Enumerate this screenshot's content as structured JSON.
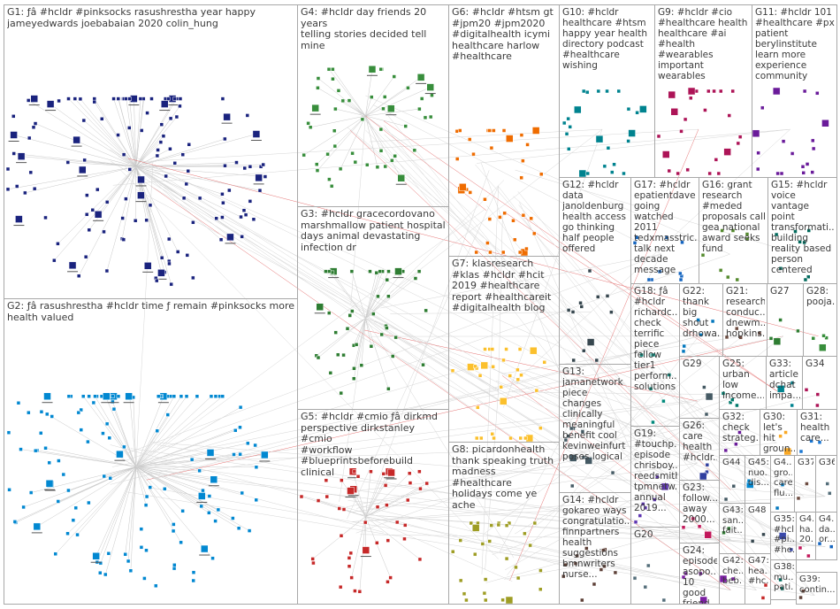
{
  "graph": {
    "groups": [
      {
        "id": "G1",
        "label": "G1: ƒâ #hcldr #pinksocks rasushrestha year happy\njameyedwards joebabaian 2020 colin_hung",
        "color": "#1a237e",
        "nodes": 140
      },
      {
        "id": "G2",
        "label": "G2: ƒâ rasushrestha #hcldr time ƒ remain #pinksocks more\nhealth valued",
        "color": "#0288d1",
        "nodes": 130
      },
      {
        "id": "G3",
        "label": "G3: #hcldr gracecordovano\nmarshmallow patient hospital\ndays animal devastating\ninfection dr",
        "color": "#2e7d32",
        "nodes": 45
      },
      {
        "id": "G4",
        "label": "G4: #hcldr day friends 20 years\ntelling stories decided tell mine",
        "color": "#388e3c",
        "nodes": 50
      },
      {
        "id": "G5",
        "label": "G5: #hcldr #cmio ƒâ dirkmd\nperspective dirkstanley #cmio\n#workflow\n#blueprintsbeforebuild clinical",
        "color": "#c62828",
        "nodes": 45
      },
      {
        "id": "G6",
        "label": "G6: #hcldr #htsm gt\n#jpm20 #jpm2020\n#digitalhealth icymi\nhealthcare harlow\n#healthcare",
        "color": "#ef6c00",
        "nodes": 40
      },
      {
        "id": "G7",
        "label": "G7: klasresearch\n#klas #hcldr #hcit\n2019 #healthcare\nreport #healthcareit\n#digitalhealth blog",
        "color": "#fbc02d",
        "nodes": 35
      },
      {
        "id": "G8",
        "label": "G8: picardonhealth\nthank speaking truth\nmadness #healthcare\nholidays come ye\nache",
        "color": "#9e9d24",
        "nodes": 30
      },
      {
        "id": "G9",
        "label": "G9: #hcldr #cio\n#healthcare health\nhealthcare #ai\n#health #wearables\nimportant\nwearables",
        "color": "#ad1457",
        "nodes": 25
      },
      {
        "id": "G10",
        "label": "G10: #hcldr\nhealthcare #htsm\nhappy year health\ndirectory podcast\n#healthcare\nwishing",
        "color": "#00838f",
        "nodes": 24
      },
      {
        "id": "G11",
        "label": "G11: #hcldr 101\n#healthcare #px\npatient\nberylinstitute\nlearn more\nexperience\ncommunity",
        "color": "#6a1b9a",
        "nodes": 20
      },
      {
        "id": "G12",
        "label": "G12: #hcldr\ndata\njanoldenburg\nhealth access\ngo thinking\nhalf people\noffered",
        "color": "#37474f",
        "nodes": 12
      },
      {
        "id": "G13",
        "label": "G13:\njamanetwork\npiece changes\nclinically\nmeaningful\nbenefit cool\nkevinweinfurt\nposes logical",
        "color": "#455a64",
        "nodes": 10
      },
      {
        "id": "G14",
        "label": "G14: #hcldr\ngokareo ways\ncongratulatio...\nfinnpartners\nhealth\nsuggestions\nbmnwriters\nnurse...",
        "color": "#5d4037",
        "nodes": 12
      },
      {
        "id": "G15",
        "label": "G15: #hcldr\nvoice vantage\npoint\ntransformati...\nbuilding\nreality based\nperson\ncentered",
        "color": "#00695c",
        "nodes": 8
      },
      {
        "id": "G16",
        "label": "G16: grant\nresearch\n#meded\nproposals call\ngea national\naward seeks\nfund",
        "color": "#558b2f",
        "nodes": 8
      },
      {
        "id": "G17",
        "label": "G17: #hcldr\nepatientdave\ngoing\nwatched 2011\ntedxmasstric...\ntalk next\ndecade\nmessage",
        "color": "#1565c0",
        "nodes": 10
      },
      {
        "id": "G18",
        "label": "G18: ƒâ\n#hcldr\nrichardc...\ncheck\nterrific\npiece\nfellow\ntier1\nperform...\nsolutions",
        "color": "#00897b",
        "nodes": 7
      },
      {
        "id": "G19",
        "label": "G19:\n#touchp...\nepisode\nchrisboy...\nreedsmith\ntpmnetw...\nannual\n2019...",
        "color": "#5e35b1",
        "nodes": 7
      },
      {
        "id": "G20",
        "label": "G20",
        "color": "#546e7a",
        "nodes": 5
      },
      {
        "id": "G21",
        "label": "G21:\nresearch\nconduc...\ndnewm...\nhopkins...",
        "color": "#6d4c41",
        "nodes": 4
      },
      {
        "id": "G22",
        "label": "G22:\nthank\nbig\nshout\ndrhowa...",
        "color": "#0277bd",
        "nodes": 5
      },
      {
        "id": "G23",
        "label": "G23:\nfollow...\naway\n2000...",
        "color": "#c2185b",
        "nodes": 4
      },
      {
        "id": "G24",
        "label": "G24:\nepisode\nasopo...\n10 good\nfriend...",
        "color": "#7b1fa2",
        "nodes": 4
      },
      {
        "id": "G25",
        "label": "G25:\nurban\nlow\nincome...",
        "color": "#00796b",
        "nodes": 4
      },
      {
        "id": "G26",
        "label": "G26:\ncare\nhealth\n#hcldr...",
        "color": "#303f9f",
        "nodes": 4
      },
      {
        "id": "G27",
        "label": "G27",
        "color": "#2e7d32",
        "nodes": 4
      },
      {
        "id": "G28",
        "label": "G28:\npooja...",
        "color": "#388e3c",
        "nodes": 4
      },
      {
        "id": "G29",
        "label": "G29",
        "color": "#455a64",
        "nodes": 3
      },
      {
        "id": "G30",
        "label": "G30:\nlet's hit\ngroun...",
        "color": "#f9a825",
        "nodes": 3
      },
      {
        "id": "G31",
        "label": "G31:\nhealth\ncare...",
        "color": "#1976d2",
        "nodes": 3
      },
      {
        "id": "G32",
        "label": "G32:\ncheck\nstrateg...",
        "color": "#6a1b9a",
        "nodes": 3
      },
      {
        "id": "G33",
        "label": "G33:\narticle\ndchat\nimpa...",
        "color": "#00838f",
        "nodes": 3
      },
      {
        "id": "G34",
        "label": "G34",
        "color": "#ad1457",
        "nodes": 3
      },
      {
        "id": "G35",
        "label": "G35:\n#hcl...\n#pi...\n#he...",
        "color": "#3949ab",
        "nodes": 3
      },
      {
        "id": "G36",
        "label": "G36",
        "color": "#546e7a",
        "nodes": 2
      },
      {
        "id": "G37",
        "label": "G37",
        "color": "#6d4c41",
        "nodes": 2
      },
      {
        "id": "G38",
        "label": "G38:\nmu...\npati...",
        "color": "#00695c",
        "nodes": 2
      },
      {
        "id": "G39",
        "label": "G39:\ncontin...",
        "color": "#5d4037",
        "nodes": 2
      },
      {
        "id": "G40",
        "label": "G4...\ngro...\ncare\nflu...",
        "color": "#0277bd",
        "nodes": 2
      },
      {
        "id": "G41",
        "label": "G4...\nha...\n20...",
        "color": "#c2185b",
        "nodes": 2
      },
      {
        "id": "G42",
        "label": "G42:\nche...\nbeb...",
        "color": "#7b1fa2",
        "nodes": 2
      },
      {
        "id": "G43",
        "label": "G43:\nsan...\nfait...",
        "color": "#2e7d32",
        "nodes": 2
      },
      {
        "id": "G44",
        "label": "G44",
        "color": "#455a64",
        "nodes": 2
      },
      {
        "id": "G45",
        "label": "G45:\nnuo...\ndis...",
        "color": "#0288d1",
        "nodes": 2
      },
      {
        "id": "G46",
        "label": "G4...\nda...\nor...",
        "color": "#1565c0",
        "nodes": 2
      },
      {
        "id": "G47",
        "label": "G47:\nhea...\n#hc...",
        "color": "#c62828",
        "nodes": 2
      },
      {
        "id": "G48",
        "label": "G48",
        "color": "#37474f",
        "nodes": 2
      }
    ]
  }
}
